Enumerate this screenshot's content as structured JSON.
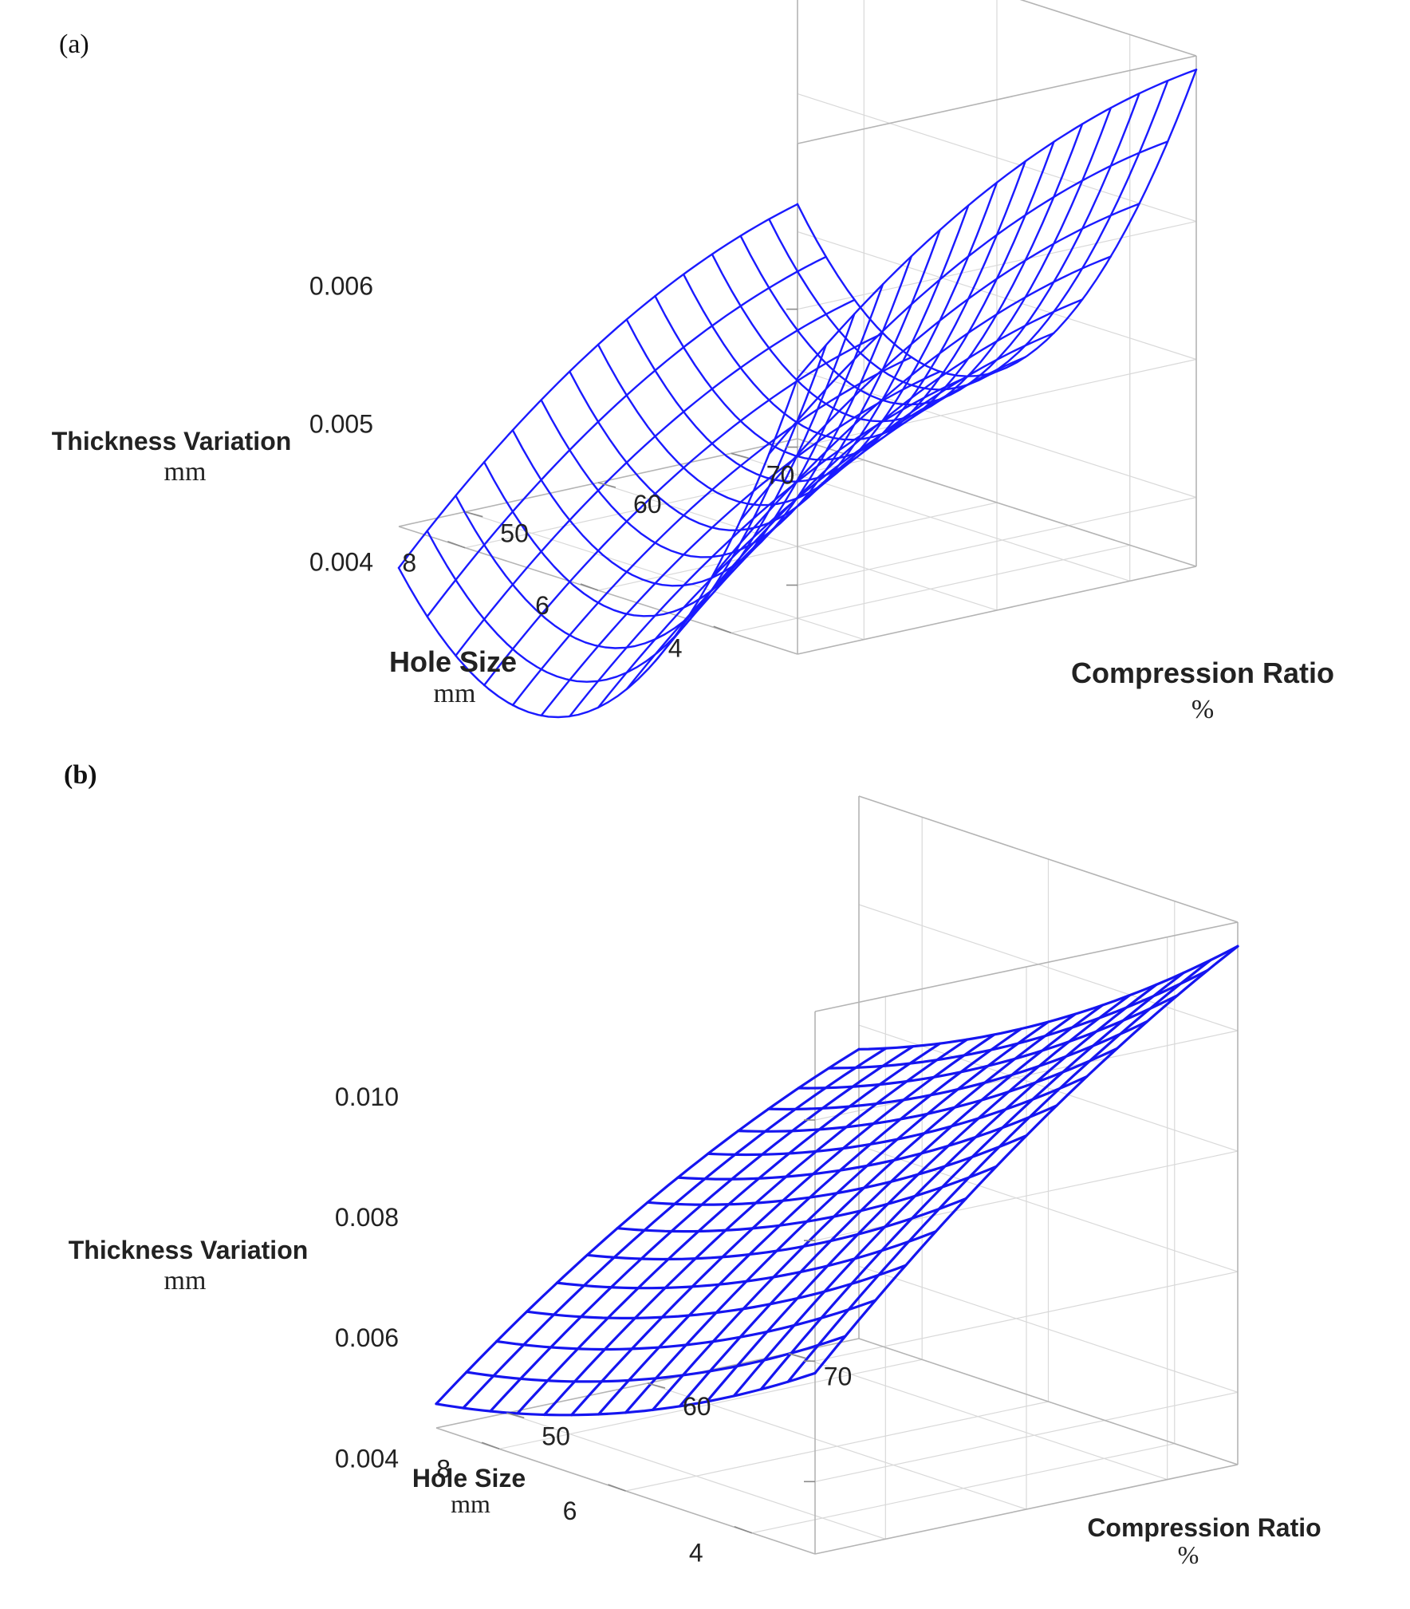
{
  "chart_data": [
    {
      "type": "surface",
      "panel_label": "(a)",
      "z_label": "Thickness Variation",
      "z_unit": "mm",
      "x_label": "Compression Ratio",
      "x_unit": "%",
      "y_label": "Hole Size",
      "y_unit": "mm",
      "x_ticks": [
        "50",
        "60",
        "70"
      ],
      "y_ticks": [
        "4",
        "6",
        "8"
      ],
      "z_ticks": [
        "0.004",
        "0.005",
        "0.006"
      ],
      "x_range": [
        45,
        75
      ],
      "y_range": [
        3,
        9
      ],
      "z_range": [
        0.0035,
        0.0072
      ],
      "surface_color": "#1a1aff",
      "grid": true,
      "corners": {
        "compression_45_hole_3": 0.0055,
        "compression_75_hole_3": 0.0071,
        "compression_45_hole_9": 0.0032,
        "compression_75_hole_9": 0.0052
      },
      "surface": {
        "x": [
          45,
          75
        ],
        "y": [
          3,
          9
        ],
        "z_at_corners": [
          [
            0.0055,
            0.0071
          ],
          [
            0.0032,
            0.0052
          ]
        ],
        "hole_size_curvature": -0.0017,
        "compression_curvature": 0.0003
      }
    },
    {
      "type": "surface",
      "panel_label": "(b)",
      "z_label": "Thickness Variation",
      "z_unit": "mm",
      "x_label": "Compression Ratio",
      "x_unit": "%",
      "y_label": "Hole Size",
      "y_unit": "mm",
      "x_ticks": [
        "50",
        "60",
        "70"
      ],
      "y_ticks": [
        "4",
        "6",
        "8"
      ],
      "z_ticks": [
        "0.004",
        "0.006",
        "0.008",
        "0.010"
      ],
      "x_range": [
        45,
        75
      ],
      "y_range": [
        3,
        9
      ],
      "z_range": [
        0.0028,
        0.0118
      ],
      "surface_color": "#1515f0",
      "grid": true,
      "corners": {
        "compression_45_hole_3": 0.0058,
        "compression_75_hole_3": 0.0114,
        "compression_45_hole_9": 0.0032,
        "compression_75_hole_9": 0.0076
      },
      "surface": {
        "x": [
          45,
          75
        ],
        "y": [
          3,
          9
        ],
        "z_at_corners": [
          [
            0.0058,
            0.0114
          ],
          [
            0.0032,
            0.0076
          ]
        ],
        "hole_size_curvature": -0.0004,
        "compression_curvature": 0.0004
      }
    }
  ]
}
